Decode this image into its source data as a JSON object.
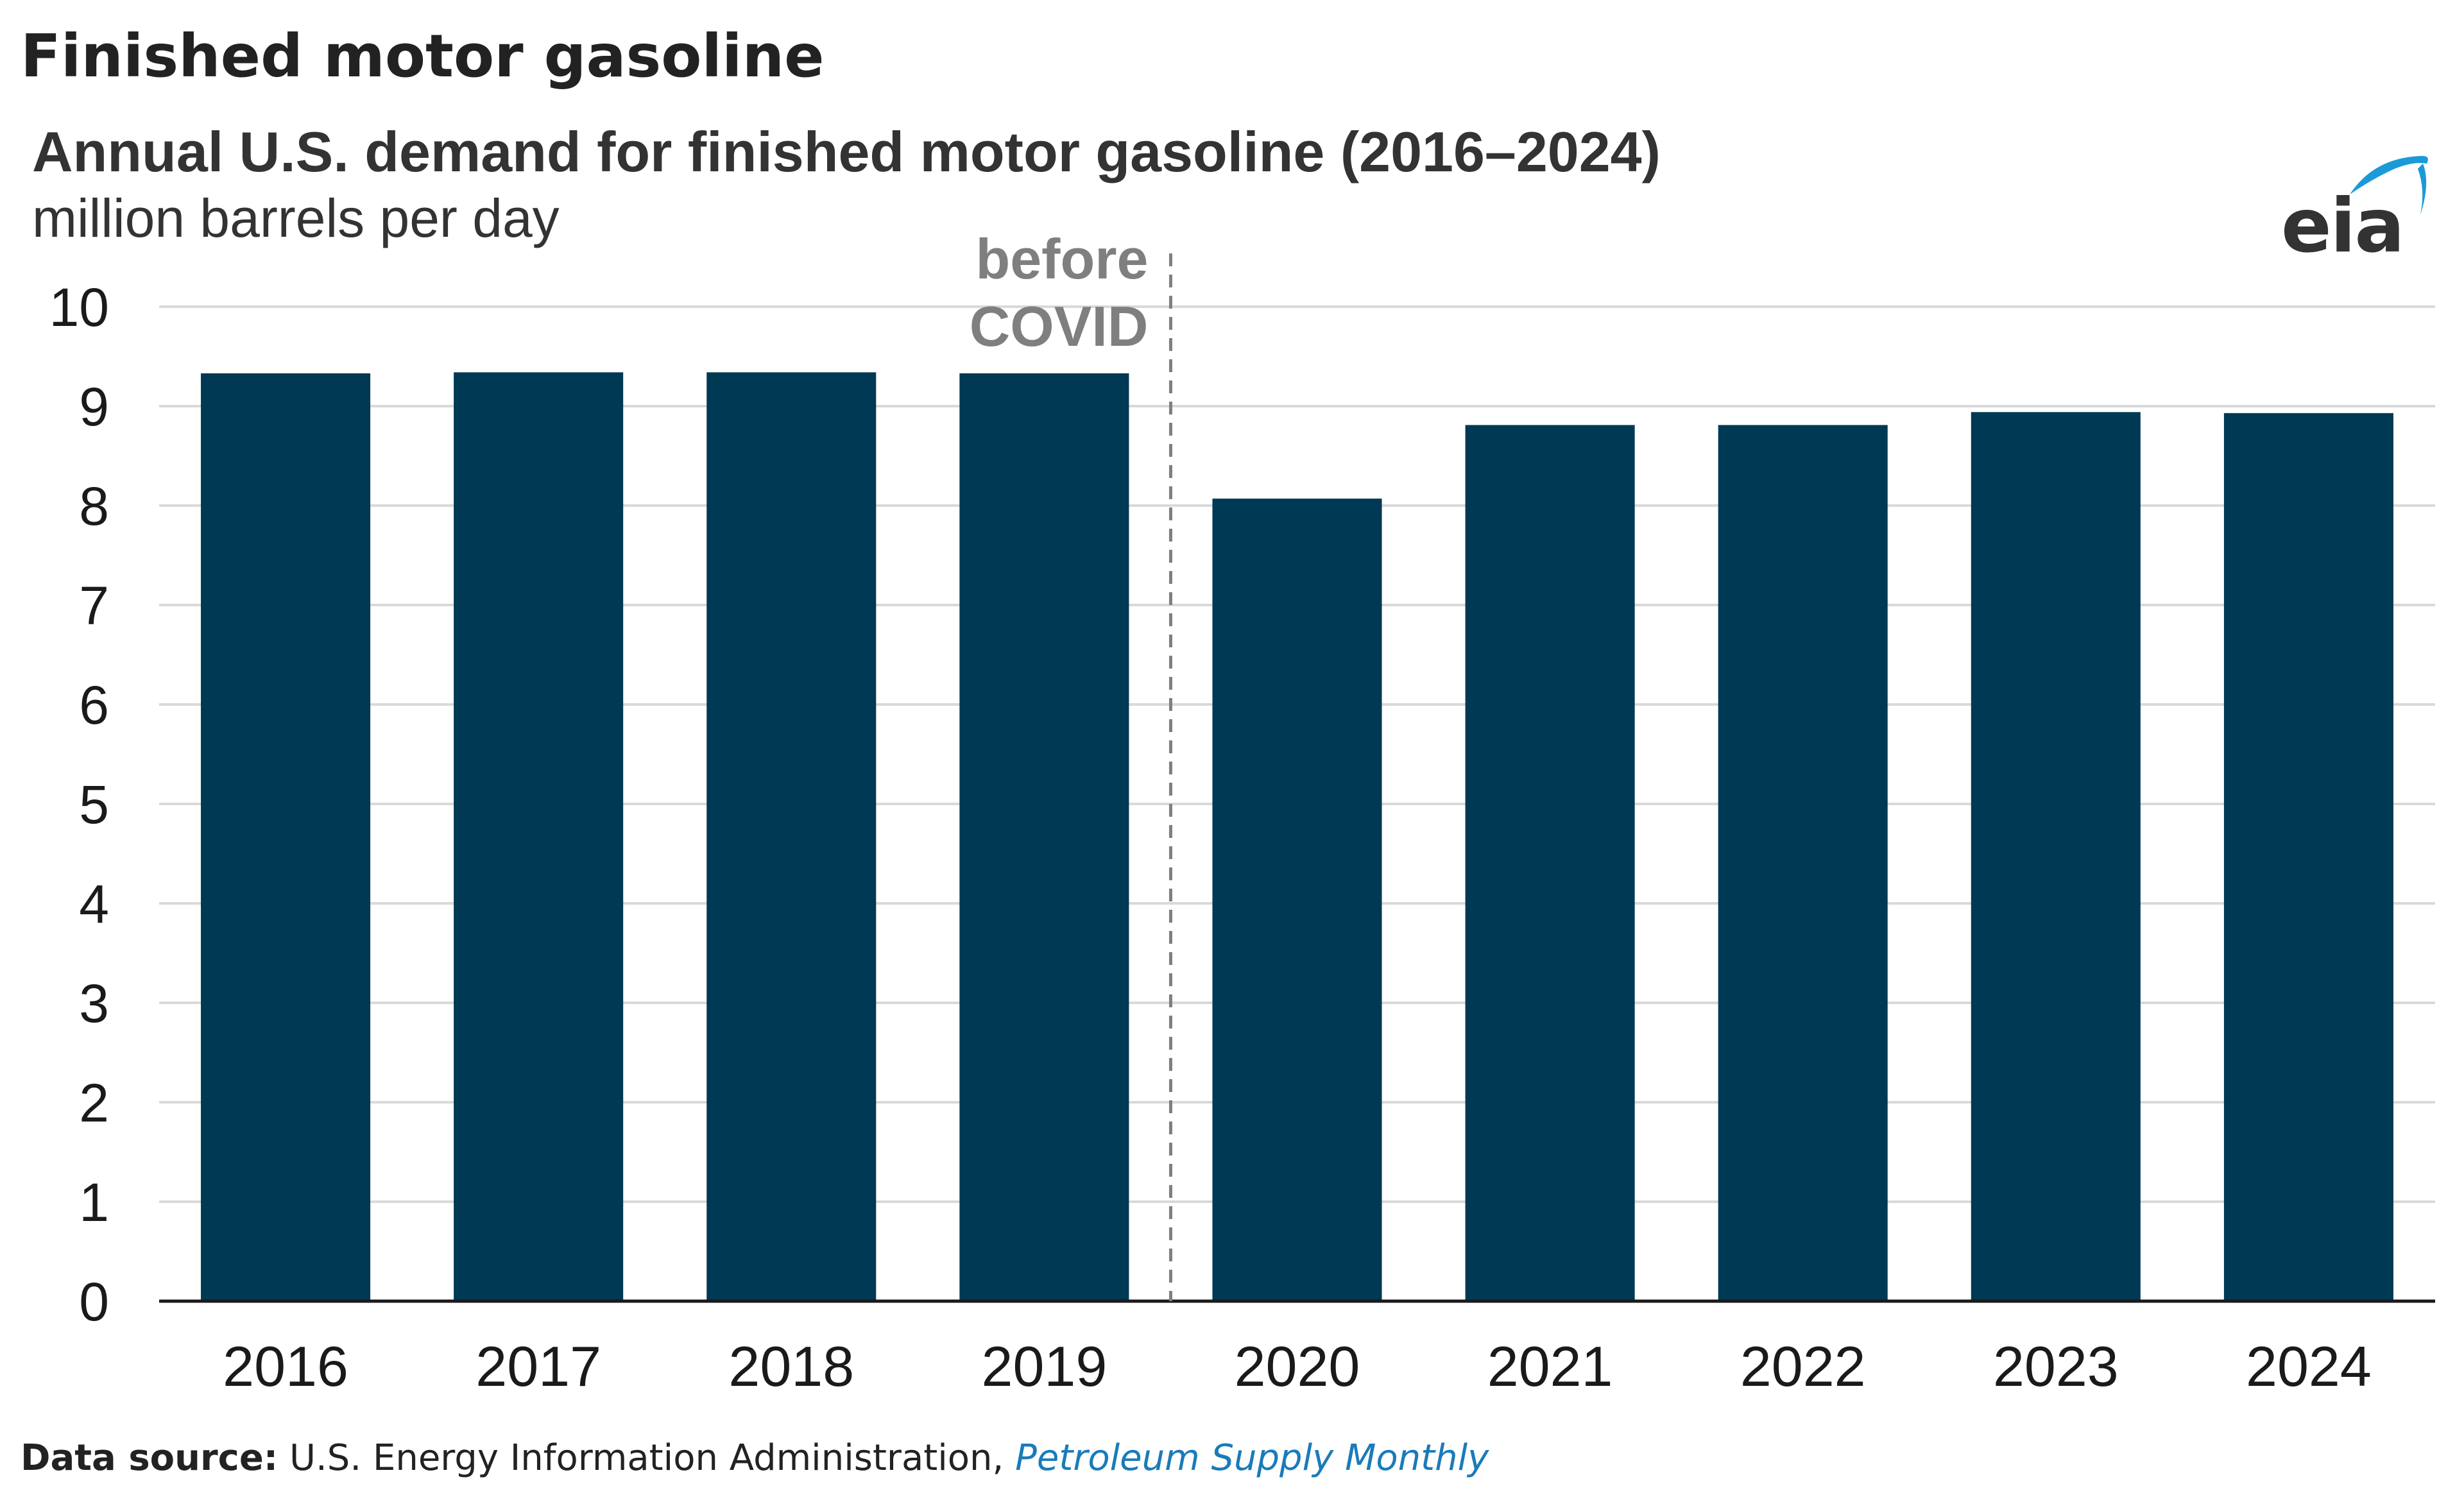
{
  "page": {
    "title": "Finished motor gasoline"
  },
  "logo": {
    "text": "eia",
    "icon": "eia-logo",
    "accent_color": "#1a9ad6"
  },
  "chart_data": {
    "type": "bar",
    "title": "Annual U.S. demand for finished motor gasoline (2016–2024)",
    "subtitle": "million barrels per day",
    "xlabel": "",
    "ylabel": "",
    "categories": [
      "2016",
      "2017",
      "2018",
      "2019",
      "2020",
      "2021",
      "2022",
      "2023",
      "2024"
    ],
    "values": [
      9.33,
      9.34,
      9.34,
      9.33,
      8.07,
      8.81,
      8.81,
      8.94,
      8.93
    ],
    "ylim": [
      0,
      10
    ],
    "yticks": [
      "0",
      "1",
      "2",
      "3",
      "4",
      "5",
      "6",
      "7",
      "8",
      "9",
      "10"
    ],
    "grid": true,
    "legend": "none",
    "bar_color": "#003953",
    "grid_color": "#d9d9d9",
    "annotation": {
      "lines": [
        "before",
        "COVID"
      ],
      "after_category": "2019",
      "style": "dashed-vertical-line",
      "color": "#7f7f7f"
    }
  },
  "footer": {
    "label": "Data source:",
    "text": "U.S. Energy Information Administration,",
    "link_text": "Petroleum Supply Monthly",
    "link_color": "#1a7bb9"
  }
}
